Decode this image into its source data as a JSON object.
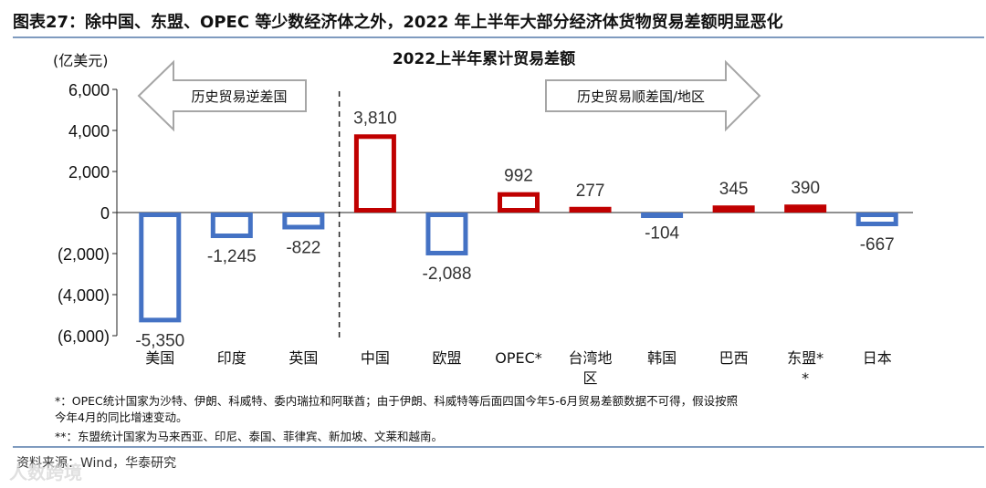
{
  "figure": {
    "title": "图表27：除中国、东盟、OPEC 等少数经济体之外，2022 年上半年大部分经济体货物贸易差额明显恶化",
    "notes": [
      "*：OPEC统计国家为沙特、伊朗、科威特、委内瑞拉和阿联酋；由于伊朗、科威特等后面四国今年5-6月贸易差额数据不可得，假设按照",
      "今年4月的同比增速变动。",
      "**：东盟统计国家为马来西亚、印尼、泰国、菲律宾、新加坡、文莱和越南。"
    ],
    "source": "资料来源：Wind，华泰研究",
    "watermark": "人数跨境"
  },
  "chart_data": {
    "type": "bar",
    "title": "2022上半年累计贸易差额",
    "ylabel": "(亿美元)",
    "ylim": [
      -6000,
      6000
    ],
    "yticks": [
      6000,
      4000,
      2000,
      0,
      -2000,
      -4000,
      -6000
    ],
    "ytick_labels": [
      "6,000",
      "4,000",
      "2,000",
      "0",
      "(2,000)",
      "(4,000)",
      "(6,000)"
    ],
    "categories": [
      "美国",
      "印度",
      "英国",
      "中国",
      "欧盟",
      "OPEC*",
      "台湾地区",
      "韩国",
      "巴西",
      "东盟**",
      "日本"
    ],
    "values": [
      -5350,
      -1245,
      -822,
      3810,
      -2088,
      992,
      277,
      -104,
      345,
      390,
      -667
    ],
    "data_labels": [
      "-5,350",
      "-1,245",
      "-822",
      "3,810",
      "-2,088",
      "992",
      "277",
      "-104",
      "345",
      "390",
      "-667"
    ],
    "colors": {
      "positive": "#c00000",
      "negative": "#4472c4"
    },
    "divider_after_index": 2,
    "annotations": {
      "deficit": "历史贸易逆差国",
      "surplus": "历史贸易顺差国/地区"
    }
  }
}
